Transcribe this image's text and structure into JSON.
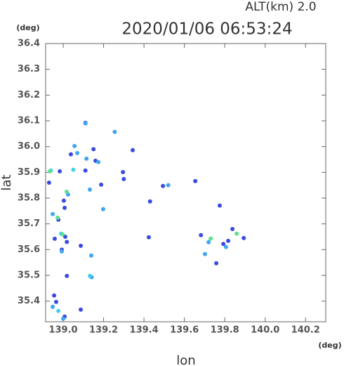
{
  "chart_data": {
    "type": "scatter",
    "alt_label": "ALT(km)  2.0",
    "title": "2020/01/06 06:53:24",
    "y_unit": "(deg)",
    "x_unit": "(deg)",
    "y_label": "lat",
    "x_label": "lon",
    "xlim": [
      138.913,
      140.3
    ],
    "ylim": [
      35.32,
      36.4
    ],
    "xticks": [
      {
        "value": 139,
        "label": "139.0"
      },
      139.2,
      139.4,
      139.6,
      139.8,
      {
        "value": 140,
        "label": "140.0"
      },
      140.2
    ],
    "yticks": [
      {
        "value": 35.4,
        "label": "35.4"
      },
      35.5,
      35.6,
      35.7,
      35.8,
      35.9,
      {
        "value": 36,
        "label": "36.0"
      },
      36.1,
      36.2,
      36.3,
      36.4
    ],
    "series": [
      {
        "color": "#3a4be0",
        "x": [
          138.983,
          138.93,
          139.007,
          139.003,
          138.976,
          139.01,
          139.018,
          139.087,
          138.993,
          139.018,
          138.955,
          138.965,
          139.007,
          139.087,
          139.11,
          139.15,
          139.11,
          139.16,
          139.296,
          139.3,
          139.344,
          139.43,
          139.494,
          139.654,
          139.682,
          139.758,
          139.775,
          139.793,
          139.838,
          139.894,
          139.817,
          139.038,
          139.188,
          138.958,
          139.424
        ],
        "values": [
          35.904,
          35.86,
          35.762,
          35.79,
          35.716,
          35.65,
          35.63,
          35.615,
          35.6,
          35.498,
          35.422,
          35.397,
          35.34,
          35.367,
          36.092,
          35.99,
          35.907,
          35.945,
          35.901,
          35.874,
          35.986,
          35.787,
          35.847,
          35.866,
          35.656,
          35.547,
          35.771,
          35.622,
          35.68,
          35.645,
          35.634,
          35.97,
          35.852,
          35.642,
          35.648
        ]
      },
      {
        "color": "#3fa6f0",
        "x": [
          139.056,
          139.11,
          139.07,
          139.115,
          139.255,
          139.174,
          139.198,
          139.52,
          139.139,
          139.141,
          138.993,
          138.948,
          139.0,
          138.948,
          139.72,
          139.806,
          139.702,
          139.132,
          139.024
        ],
        "values": [
          36.002,
          36.09,
          35.975,
          35.953,
          36.057,
          35.94,
          35.757,
          35.85,
          35.577,
          35.493,
          35.593,
          35.378,
          35.332,
          35.738,
          35.629,
          35.61,
          35.583,
          35.833,
          35.814
        ]
      },
      {
        "color": "#40d2ea",
        "x": [
          139.132,
          138.99,
          138.939,
          139.05,
          138.976
        ],
        "values": [
          35.498,
          35.662,
          35.907,
          35.91,
          35.362
        ]
      },
      {
        "color": "#5ee08c",
        "x": [
          139.017,
          138.934,
          138.972,
          138.997,
          139.859,
          139.73
        ],
        "values": [
          35.825,
          35.904,
          35.724,
          35.659,
          35.662,
          35.643
        ]
      }
    ]
  }
}
